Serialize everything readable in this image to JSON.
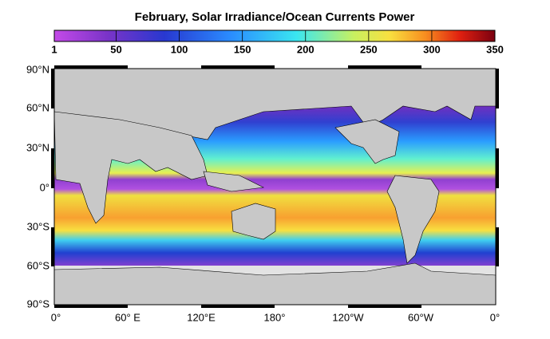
{
  "title": "February, Solar Irradiance/Ocean Currents Power",
  "colorbar": {
    "lim": [
      1,
      350
    ],
    "ticks": [
      1,
      50,
      100,
      150,
      200,
      250,
      300,
      350
    ]
  },
  "lat_labels": [
    "90°N",
    "60°N",
    "30°N",
    "0°",
    "30°S",
    "60°S",
    "90°S"
  ],
  "lon_labels": [
    "0°",
    "60° E",
    "120°E",
    "180°",
    "120°W",
    "60°W",
    "0°"
  ]
}
